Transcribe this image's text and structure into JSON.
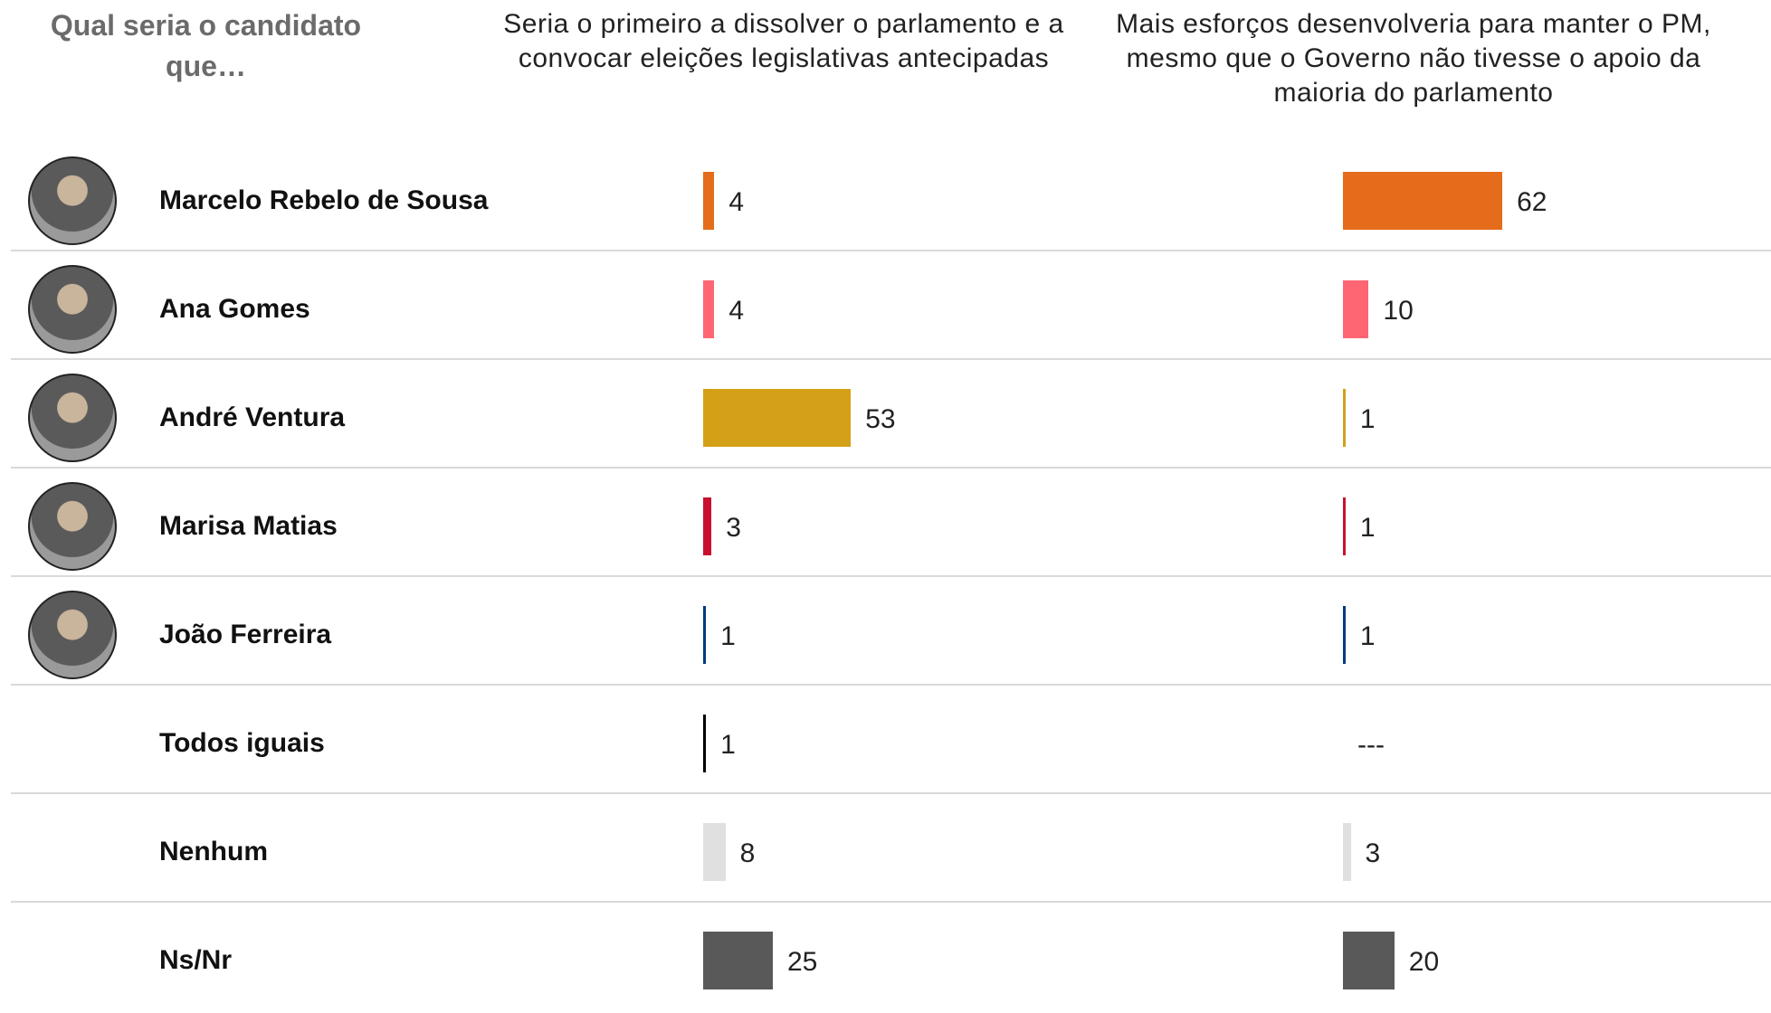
{
  "chart_data": {
    "type": "bar",
    "title": "Qual seria o candidato que…",
    "categories": [
      "Marcelo Rebelo de Sousa",
      "Ana Gomes",
      "André Ventura",
      "Marisa Matias",
      "João Ferreira",
      "Todos iguais",
      "Nenhum",
      "Ns/Nr"
    ],
    "colors": [
      "#e46c1a",
      "#ff6673",
      "#d4a017",
      "#c8102e",
      "#003a80",
      "#000000",
      "#e0e0e0",
      "#595959"
    ],
    "series": [
      {
        "name": "Seria o primeiro a dissolver o parlamento e a convocar eleições legislativas antecipadas",
        "values": [
          4,
          4,
          53,
          3,
          1,
          1,
          8,
          25
        ]
      },
      {
        "name": "Mais esforços desenvolveria para manter o PM, mesmo que o Governo não tivesse o apoio da maioria do parlamento",
        "values": [
          62,
          10,
          1,
          1,
          1,
          null,
          3,
          20
        ],
        "value_labels": [
          "62",
          "10",
          "1",
          "1",
          "1",
          "---",
          "3",
          "20"
        ]
      }
    ]
  }
}
